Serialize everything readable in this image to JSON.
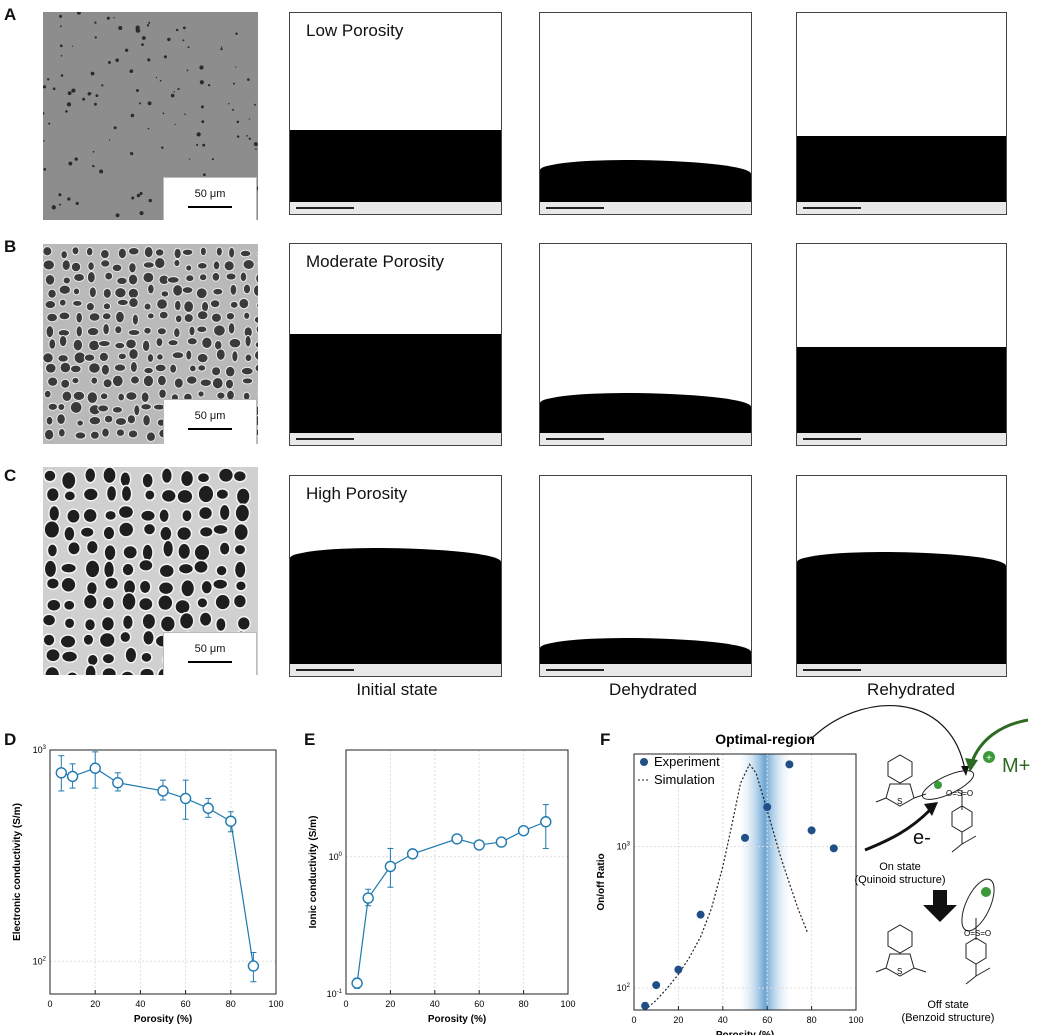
{
  "panel_letters": {
    "a": "A",
    "b": "B",
    "c": "C",
    "d": "D",
    "e": "E",
    "f": "F"
  },
  "scale_text": "50 μm",
  "rows": [
    {
      "title": "Low Porosity",
      "film_tops": [
        0.58,
        0.73,
        0.61
      ],
      "wavy": [
        false,
        true,
        false
      ]
    },
    {
      "title": "Moderate Porosity",
      "film_tops": [
        0.45,
        0.74,
        0.51
      ],
      "wavy": [
        false,
        true,
        false
      ]
    },
    {
      "title": "High Porosity",
      "film_tops": [
        0.36,
        0.81,
        0.38
      ],
      "wavy": [
        true,
        true,
        true
      ]
    }
  ],
  "column_labels": [
    "Initial state",
    "Dehydrated",
    "Rehydrated"
  ],
  "colors": {
    "series": "#1f7ab0",
    "band": "#5a9bd0",
    "arrow_green": "#2e6b22",
    "dot": "#1f4f86"
  },
  "chart_data": [
    {
      "type": "line",
      "id": "D",
      "xlabel": "Porosity (%)",
      "ylabel": "Electronic conductivity (S/m)",
      "xlim": [
        0,
        100
      ],
      "ylim": [
        70,
        1000
      ],
      "yscale": "log",
      "xticks": [
        "0",
        "20",
        "40",
        "60",
        "80",
        "100"
      ],
      "yticks": [
        {
          "v": 100,
          "base": "10",
          "exp": "2"
        },
        {
          "v": 1000,
          "base": "10",
          "exp": "3"
        }
      ],
      "x": [
        5,
        10,
        20,
        30,
        50,
        60,
        70,
        80,
        90
      ],
      "y": [
        780,
        750,
        820,
        700,
        640,
        590,
        530,
        460,
        95
      ],
      "err": [
        [
          640,
          940
        ],
        [
          660,
          860
        ],
        [
          660,
          980
        ],
        [
          640,
          780
        ],
        [
          580,
          720
        ],
        [
          470,
          720
        ],
        [
          480,
          590
        ],
        [
          410,
          510
        ],
        [
          80,
          110
        ]
      ],
      "grid": true
    },
    {
      "type": "line",
      "id": "E",
      "xlabel": "Porosity (%)",
      "ylabel": "Ionic conductivity (S/m)",
      "xlim": [
        0,
        100
      ],
      "ylim": [
        0.1,
        6
      ],
      "yscale": "log",
      "xticks": [
        "0",
        "20",
        "40",
        "60",
        "80",
        "100"
      ],
      "yticks": [
        {
          "v": 0.1,
          "base": "10",
          "exp": "-1"
        },
        {
          "v": 1,
          "base": "10",
          "exp": "0"
        }
      ],
      "x": [
        5,
        10,
        20,
        30,
        50,
        60,
        70,
        80,
        90
      ],
      "y": [
        0.12,
        0.5,
        0.85,
        1.05,
        1.35,
        1.22,
        1.28,
        1.55,
        1.8
      ],
      "err": [
        [
          0.11,
          0.13
        ],
        [
          0.44,
          0.58
        ],
        [
          0.6,
          1.15
        ],
        [
          0.98,
          1.12
        ],
        [
          1.26,
          1.44
        ],
        [
          1.14,
          1.3
        ],
        [
          1.2,
          1.36
        ],
        [
          1.45,
          1.65
        ],
        [
          1.15,
          2.4
        ]
      ],
      "grid": true
    },
    {
      "type": "scatter",
      "id": "F",
      "title": "Optimal-region",
      "xlabel": "Porosity (%)",
      "ylabel": "On/off Ratio",
      "xlim": [
        0,
        100
      ],
      "ylim": [
        70,
        4500
      ],
      "yscale": "log",
      "xticks": [
        "0",
        "20",
        "40",
        "60",
        "80",
        "100"
      ],
      "yticks": [
        {
          "v": 100,
          "base": "10",
          "exp": "2"
        },
        {
          "v": 1000,
          "base": "10",
          "exp": "3"
        }
      ],
      "band": [
        46,
        72
      ],
      "series": [
        {
          "name": "Experiment",
          "x": [
            5,
            10,
            20,
            30,
            50,
            60,
            70,
            80,
            90
          ],
          "y": [
            75,
            105,
            135,
            330,
            1150,
            1900,
            3800,
            1300,
            970
          ]
        },
        {
          "name": "Simulation",
          "x": [
            5,
            10,
            15,
            20,
            25,
            30,
            35,
            40,
            44,
            48,
            52,
            55,
            58,
            62,
            66,
            70,
            74,
            78
          ],
          "y": [
            70,
            82,
            100,
            125,
            165,
            230,
            370,
            720,
            1400,
            2800,
            3800,
            3300,
            2300,
            1400,
            850,
            550,
            360,
            250
          ]
        }
      ],
      "legend": [
        "Experiment",
        "Simulation"
      ],
      "grid": true
    }
  ],
  "schematic": {
    "m_plus": "M+",
    "plus": "+",
    "e_minus": "e-",
    "on_state": "On state",
    "on_struct": "(Quinoid structure)",
    "off_state": "Off state",
    "off_struct": "(Benzoid structure)",
    "sulfonate": "O=S=O",
    "o_label": "O"
  }
}
